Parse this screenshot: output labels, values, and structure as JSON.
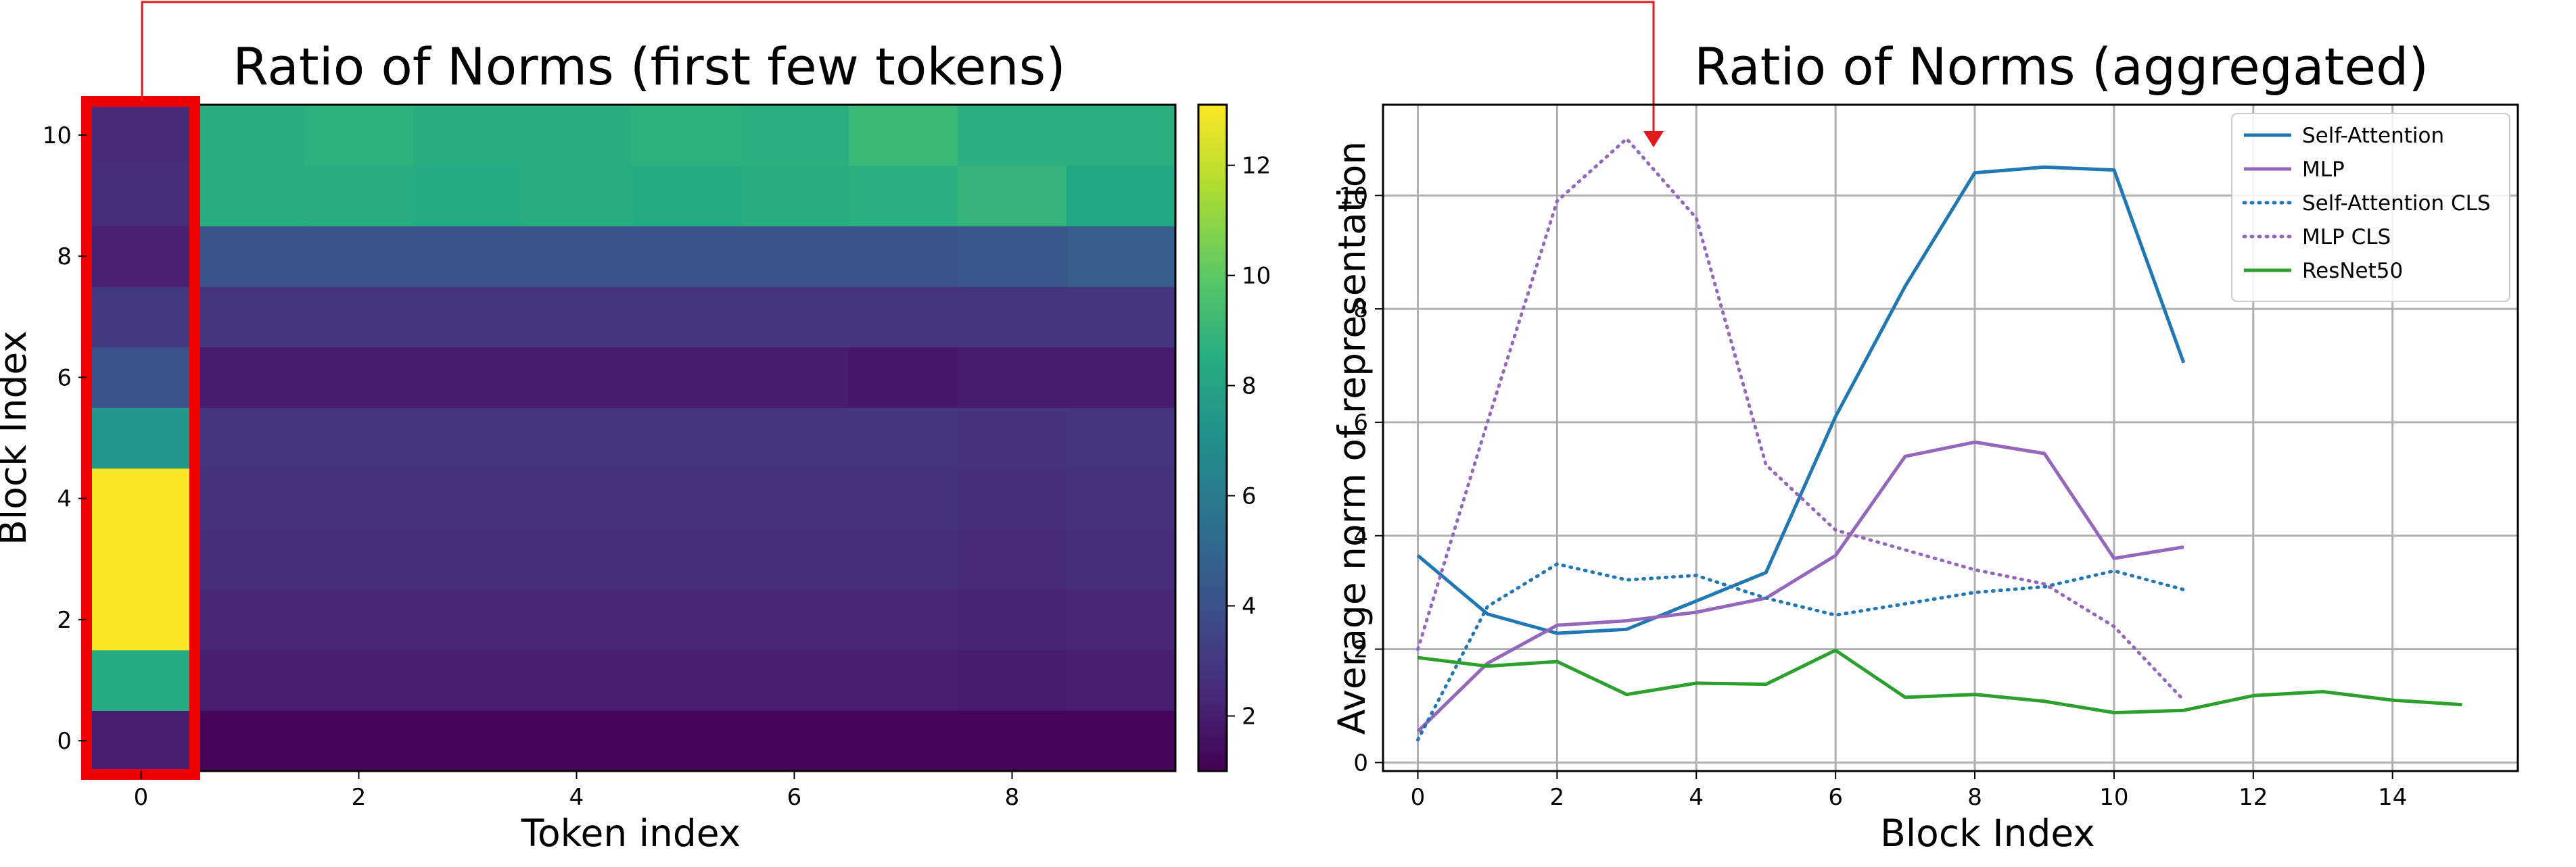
{
  "chart_data": [
    {
      "type": "heatmap",
      "title": "Ratio of Norms (first few tokens)",
      "xlabel": "Token index",
      "ylabel": "Block Index",
      "x_ticks": [
        "0",
        "2",
        "4",
        "6",
        "8"
      ],
      "y_ticks": [
        "0",
        "2",
        "4",
        "6",
        "8",
        "10"
      ],
      "colorbar_ticks": [
        "2",
        "4",
        "6",
        "8",
        "10",
        "12"
      ],
      "colorbar_range": [
        1.0,
        13.1
      ],
      "colormap": "viridis",
      "rows_block_index": [
        0,
        1,
        2,
        3,
        4,
        5,
        6,
        7,
        8,
        9,
        10
      ],
      "cols_token_index": [
        0,
        1,
        2,
        3,
        4,
        5,
        6,
        7,
        8,
        9
      ],
      "values": [
        [
          2.0,
          1.1,
          1.1,
          1.1,
          1.1,
          1.1,
          1.1,
          1.1,
          1.1,
          1.1
        ],
        [
          8.4,
          2.0,
          2.0,
          2.0,
          2.0,
          2.0,
          2.0,
          2.0,
          1.9,
          2.0
        ],
        [
          13.0,
          2.3,
          2.3,
          2.3,
          2.3,
          2.3,
          2.3,
          2.3,
          2.2,
          2.3
        ],
        [
          13.0,
          2.6,
          2.6,
          2.6,
          2.6,
          2.6,
          2.6,
          2.6,
          2.5,
          2.6
        ],
        [
          13.0,
          2.7,
          2.7,
          2.7,
          2.7,
          2.7,
          2.7,
          2.7,
          2.6,
          2.7
        ],
        [
          7.4,
          2.8,
          2.8,
          2.8,
          2.8,
          2.8,
          2.8,
          2.8,
          2.7,
          2.8
        ],
        [
          4.1,
          1.9,
          1.9,
          1.9,
          1.9,
          1.9,
          1.9,
          1.8,
          1.9,
          1.9
        ],
        [
          3.0,
          2.8,
          2.8,
          2.8,
          2.8,
          2.8,
          2.8,
          2.8,
          2.8,
          2.8
        ],
        [
          2.1,
          4.1,
          4.1,
          4.2,
          4.2,
          4.2,
          4.2,
          4.1,
          4.3,
          4.6
        ],
        [
          2.6,
          8.5,
          8.5,
          8.4,
          8.5,
          8.4,
          8.5,
          8.6,
          8.9,
          8.2
        ],
        [
          2.5,
          8.5,
          8.7,
          8.5,
          8.5,
          8.7,
          8.6,
          9.1,
          8.6,
          8.6
        ]
      ],
      "highlight": "column 0 outlined in red"
    },
    {
      "type": "line",
      "title": "Ratio of Norms (aggregated)",
      "xlabel": "Block Index",
      "ylabel": "Average norm of representation",
      "xlim": [
        -0.5,
        15.8
      ],
      "ylim": [
        -0.15,
        11.6
      ],
      "x_ticks": [
        "0",
        "2",
        "4",
        "6",
        "8",
        "10",
        "12",
        "14"
      ],
      "y_ticks": [
        "0",
        "2",
        "4",
        "6",
        "8",
        "10"
      ],
      "grid": true,
      "legend_position": "top-right",
      "series": [
        {
          "name": "Self-Attention",
          "color": "#1f77b4",
          "style": "solid",
          "x": [
            0,
            1,
            2,
            3,
            4,
            5,
            6,
            7,
            8,
            9,
            10,
            11
          ],
          "y": [
            3.65,
            2.62,
            2.28,
            2.35,
            2.85,
            3.35,
            6.1,
            8.4,
            10.4,
            10.5,
            10.45,
            7.05
          ]
        },
        {
          "name": "MLP",
          "color": "#9467bd",
          "style": "solid",
          "x": [
            0,
            1,
            2,
            3,
            4,
            5,
            6,
            7,
            8,
            9,
            10,
            11
          ],
          "y": [
            0.55,
            1.75,
            2.42,
            2.5,
            2.65,
            2.9,
            3.65,
            5.4,
            5.65,
            5.45,
            3.6,
            3.8
          ]
        },
        {
          "name": "Self-Attention CLS",
          "color": "#1f77b4",
          "style": "dotted",
          "x": [
            0,
            1,
            2,
            3,
            4,
            5,
            6,
            7,
            8,
            9,
            10,
            11
          ],
          "y": [
            0.4,
            2.75,
            3.5,
            3.22,
            3.3,
            2.9,
            2.6,
            2.8,
            3.0,
            3.1,
            3.38,
            3.05
          ]
        },
        {
          "name": "MLP CLS",
          "color": "#9467bd",
          "style": "dotted",
          "x": [
            0,
            1,
            2,
            3,
            4,
            5,
            6,
            7,
            8,
            9,
            10,
            11
          ],
          "y": [
            2.0,
            6.0,
            9.9,
            11.0,
            9.6,
            5.25,
            4.1,
            3.75,
            3.4,
            3.15,
            2.4,
            1.1
          ]
        },
        {
          "name": "ResNet50",
          "color": "#2ca02c",
          "style": "solid",
          "x": [
            0,
            1,
            2,
            3,
            4,
            5,
            6,
            7,
            8,
            9,
            10,
            11,
            12,
            13,
            14,
            15
          ],
          "y": [
            1.85,
            1.7,
            1.78,
            1.2,
            1.4,
            1.38,
            1.98,
            1.15,
            1.2,
            1.08,
            0.88,
            0.92,
            1.18,
            1.25,
            1.1,
            1.02
          ]
        }
      ]
    }
  ]
}
